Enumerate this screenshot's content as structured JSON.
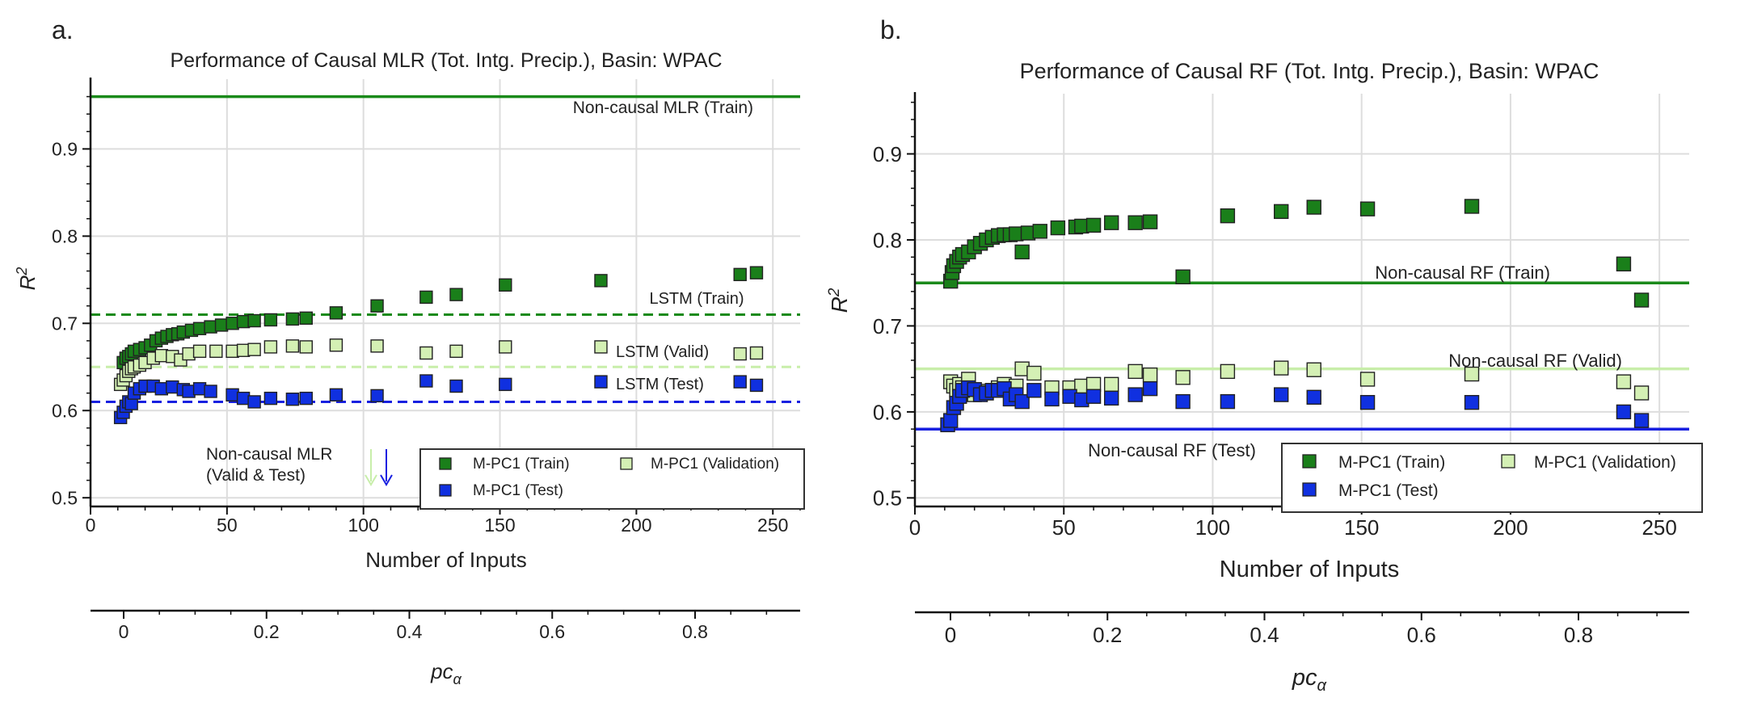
{
  "figure": {
    "panels": [
      {
        "panel_label": "a.",
        "title": "Performance of Causal MLR (Tot. Intg. Precip.), Basin: WPAC",
        "xlabel": "Number of Inputs",
        "ylabel": "R²",
        "secondary_xlabel": "pcα",
        "annotations": {
          "noncausal_train": "Non-causal MLR (Train)",
          "lstm_train": "LSTM (Train)",
          "lstm_valid": "LSTM (Valid)",
          "lstm_test": "LSTM (Test)",
          "noncausal_vt_line1": "Non-causal MLR",
          "noncausal_vt_line2": "(Valid & Test)"
        },
        "legend": {
          "train": "M-PC1 (Train)",
          "validation": "M-PC1 (Validation)",
          "test": "M-PC1 (Test)"
        }
      },
      {
        "panel_label": "b.",
        "title": "Performance of Causal RF (Tot. Intg. Precip.), Basin: WPAC",
        "xlabel": "Number of Inputs",
        "ylabel": "R²",
        "secondary_xlabel": "pcα",
        "annotations": {
          "noncausal_train": "Non-causal RF (Train)",
          "noncausal_valid": "Non-causal RF (Valid)",
          "noncausal_test": "Non-causal RF (Test)"
        },
        "legend": {
          "train": "M-PC1 (Train)",
          "validation": "M-PC1 (Validation)",
          "test": "M-PC1 (Test)"
        }
      }
    ]
  },
  "colors": {
    "train": "#1a7f1a",
    "validation": "#d4f0b4",
    "test": "#1030e0",
    "line_train": "#1a8a1a",
    "line_valid": "#c8eeaa",
    "line_test": "#1820e0",
    "grid": "#dddddd"
  },
  "chart_data": [
    {
      "type": "scatter",
      "panel": "a.",
      "title": "Performance of Causal MLR (Tot. Intg. Precip.), Basin: WPAC",
      "xlabel": "Number of Inputs",
      "ylabel": "R²",
      "xlim": [
        0,
        260
      ],
      "ylim": [
        0.49,
        0.98
      ],
      "xticks": [
        0,
        50,
        100,
        150,
        200,
        250
      ],
      "yticks": [
        0.5,
        0.6,
        0.7,
        0.8,
        0.9
      ],
      "grid": true,
      "legend_position": "bottom-right",
      "secondary_axis": {
        "label": "pcα",
        "ticks": [
          0,
          0.2,
          0.4,
          0.6,
          0.8
        ],
        "range": [
          -0.05,
          0.95
        ]
      },
      "reference_lines": [
        {
          "name": "Non-causal MLR (Train)",
          "y": 0.96,
          "style": "solid",
          "series": "train"
        },
        {
          "name": "LSTM (Train)",
          "y": 0.71,
          "style": "dashed",
          "series": "train"
        },
        {
          "name": "LSTM (Valid)",
          "y": 0.65,
          "style": "dashed",
          "series": "validation"
        },
        {
          "name": "LSTM (Test)",
          "y": 0.61,
          "style": "dashed",
          "series": "test"
        }
      ],
      "series": [
        {
          "name": "M-PC1 (Train)",
          "key": "train",
          "points": [
            [
              12,
              0.655
            ],
            [
              13,
              0.66
            ],
            [
              14,
              0.662
            ],
            [
              15,
              0.665
            ],
            [
              16,
              0.668
            ],
            [
              18,
              0.67
            ],
            [
              20,
              0.672
            ],
            [
              22,
              0.675
            ],
            [
              24,
              0.68
            ],
            [
              26,
              0.683
            ],
            [
              28,
              0.685
            ],
            [
              30,
              0.687
            ],
            [
              32,
              0.688
            ],
            [
              34,
              0.69
            ],
            [
              37,
              0.692
            ],
            [
              40,
              0.694
            ],
            [
              44,
              0.696
            ],
            [
              48,
              0.698
            ],
            [
              52,
              0.7
            ],
            [
              56,
              0.702
            ],
            [
              60,
              0.703
            ],
            [
              66,
              0.704
            ],
            [
              74,
              0.705
            ],
            [
              79,
              0.706
            ],
            [
              90,
              0.712
            ],
            [
              105,
              0.72
            ],
            [
              123,
              0.73
            ],
            [
              134,
              0.733
            ],
            [
              152,
              0.744
            ],
            [
              187,
              0.749
            ],
            [
              238,
              0.756
            ],
            [
              244,
              0.758
            ]
          ]
        },
        {
          "name": "M-PC1 (Validation)",
          "key": "validation",
          "points": [
            [
              11,
              0.63
            ],
            [
              12,
              0.635
            ],
            [
              13,
              0.64
            ],
            [
              14,
              0.645
            ],
            [
              15,
              0.648
            ],
            [
              16,
              0.65
            ],
            [
              18,
              0.652
            ],
            [
              20,
              0.655
            ],
            [
              23,
              0.66
            ],
            [
              26,
              0.663
            ],
            [
              30,
              0.662
            ],
            [
              33,
              0.658
            ],
            [
              36,
              0.665
            ],
            [
              40,
              0.668
            ],
            [
              46,
              0.668
            ],
            [
              52,
              0.668
            ],
            [
              56,
              0.669
            ],
            [
              60,
              0.67
            ],
            [
              66,
              0.673
            ],
            [
              74,
              0.674
            ],
            [
              79,
              0.673
            ],
            [
              90,
              0.675
            ],
            [
              105,
              0.674
            ],
            [
              123,
              0.666
            ],
            [
              134,
              0.668
            ],
            [
              152,
              0.673
            ],
            [
              187,
              0.673
            ],
            [
              238,
              0.665
            ],
            [
              244,
              0.666
            ]
          ]
        },
        {
          "name": "M-PC1 (Test)",
          "key": "test",
          "points": [
            [
              11,
              0.592
            ],
            [
              12,
              0.598
            ],
            [
              13,
              0.605
            ],
            [
              14,
              0.61
            ],
            [
              15,
              0.608
            ],
            [
              16,
              0.62
            ],
            [
              18,
              0.625
            ],
            [
              20,
              0.628
            ],
            [
              23,
              0.628
            ],
            [
              26,
              0.625
            ],
            [
              30,
              0.627
            ],
            [
              34,
              0.624
            ],
            [
              36,
              0.622
            ],
            [
              40,
              0.625
            ],
            [
              44,
              0.622
            ],
            [
              52,
              0.618
            ],
            [
              56,
              0.614
            ],
            [
              60,
              0.61
            ],
            [
              66,
              0.614
            ],
            [
              74,
              0.613
            ],
            [
              79,
              0.614
            ],
            [
              90,
              0.618
            ],
            [
              105,
              0.617
            ],
            [
              123,
              0.634
            ],
            [
              134,
              0.628
            ],
            [
              152,
              0.63
            ],
            [
              187,
              0.633
            ],
            [
              238,
              0.633
            ],
            [
              244,
              0.629
            ]
          ]
        }
      ]
    },
    {
      "type": "scatter",
      "panel": "b.",
      "title": "Performance of Causal RF (Tot. Intg. Precip.), Basin: WPAC",
      "xlabel": "Number of Inputs",
      "ylabel": "R²",
      "xlim": [
        0,
        260
      ],
      "ylim": [
        0.49,
        0.97
      ],
      "xticks": [
        0,
        50,
        100,
        150,
        200,
        250
      ],
      "yticks": [
        0.5,
        0.6,
        0.7,
        0.8,
        0.9
      ],
      "grid": true,
      "legend_position": "bottom-right",
      "secondary_axis": {
        "label": "pcα",
        "ticks": [
          0,
          0.2,
          0.4,
          0.6,
          0.8
        ],
        "range": [
          -0.05,
          0.95
        ]
      },
      "reference_lines": [
        {
          "name": "Non-causal RF (Train)",
          "y": 0.75,
          "style": "solid",
          "series": "train"
        },
        {
          "name": "Non-causal RF (Valid)",
          "y": 0.65,
          "style": "solid",
          "series": "validation"
        },
        {
          "name": "Non-causal RF (Test)",
          "y": 0.58,
          "style": "solid",
          "series": "test"
        }
      ],
      "series": [
        {
          "name": "M-PC1 (Train)",
          "key": "train",
          "points": [
            [
              12,
              0.752
            ],
            [
              12.5,
              0.762
            ],
            [
              13,
              0.77
            ],
            [
              14,
              0.775
            ],
            [
              15,
              0.78
            ],
            [
              16,
              0.783
            ],
            [
              18,
              0.786
            ],
            [
              20,
              0.792
            ],
            [
              22,
              0.796
            ],
            [
              24,
              0.8
            ],
            [
              26,
              0.803
            ],
            [
              28,
              0.805
            ],
            [
              30,
              0.806
            ],
            [
              32,
              0.806
            ],
            [
              34,
              0.807
            ],
            [
              36,
              0.786
            ],
            [
              38,
              0.808
            ],
            [
              42,
              0.81
            ],
            [
              48,
              0.814
            ],
            [
              54,
              0.815
            ],
            [
              56,
              0.816
            ],
            [
              60,
              0.817
            ],
            [
              66,
              0.82
            ],
            [
              74,
              0.82
            ],
            [
              79,
              0.821
            ],
            [
              90,
              0.757
            ],
            [
              105,
              0.828
            ],
            [
              123,
              0.833
            ],
            [
              134,
              0.838
            ],
            [
              152,
              0.836
            ],
            [
              187,
              0.839
            ],
            [
              238,
              0.772
            ],
            [
              244,
              0.73
            ]
          ]
        },
        {
          "name": "M-PC1 (Validation)",
          "key": "validation",
          "points": [
            [
              12,
              0.635
            ],
            [
              13,
              0.63
            ],
            [
              14,
              0.625
            ],
            [
              15,
              0.632
            ],
            [
              16,
              0.628
            ],
            [
              18,
              0.638
            ],
            [
              20,
              0.62
            ],
            [
              22,
              0.624
            ],
            [
              24,
              0.622
            ],
            [
              26,
              0.625
            ],
            [
              28,
              0.628
            ],
            [
              30,
              0.632
            ],
            [
              32,
              0.626
            ],
            [
              34,
              0.63
            ],
            [
              36,
              0.65
            ],
            [
              40,
              0.645
            ],
            [
              46,
              0.628
            ],
            [
              52,
              0.628
            ],
            [
              56,
              0.63
            ],
            [
              60,
              0.632
            ],
            [
              66,
              0.632
            ],
            [
              74,
              0.647
            ],
            [
              79,
              0.643
            ],
            [
              90,
              0.64
            ],
            [
              105,
              0.647
            ],
            [
              123,
              0.651
            ],
            [
              134,
              0.649
            ],
            [
              152,
              0.638
            ],
            [
              187,
              0.644
            ],
            [
              238,
              0.635
            ],
            [
              244,
              0.622
            ]
          ]
        },
        {
          "name": "M-PC1 (Test)",
          "key": "test",
          "points": [
            [
              11,
              0.585
            ],
            [
              12,
              0.59
            ],
            [
              13,
              0.605
            ],
            [
              14,
              0.61
            ],
            [
              15,
              0.618
            ],
            [
              16,
              0.625
            ],
            [
              18,
              0.628
            ],
            [
              20,
              0.626
            ],
            [
              22,
              0.62
            ],
            [
              24,
              0.622
            ],
            [
              26,
              0.625
            ],
            [
              28,
              0.625
            ],
            [
              30,
              0.627
            ],
            [
              32,
              0.615
            ],
            [
              34,
              0.62
            ],
            [
              36,
              0.612
            ],
            [
              40,
              0.625
            ],
            [
              46,
              0.615
            ],
            [
              52,
              0.618
            ],
            [
              56,
              0.614
            ],
            [
              60,
              0.618
            ],
            [
              66,
              0.616
            ],
            [
              74,
              0.62
            ],
            [
              79,
              0.627
            ],
            [
              90,
              0.612
            ],
            [
              105,
              0.612
            ],
            [
              123,
              0.62
            ],
            [
              134,
              0.617
            ],
            [
              152,
              0.611
            ],
            [
              187,
              0.611
            ],
            [
              238,
              0.6
            ],
            [
              244,
              0.59
            ]
          ]
        }
      ]
    }
  ]
}
